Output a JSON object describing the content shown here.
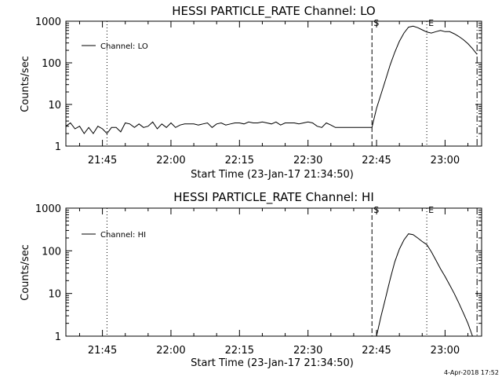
{
  "timestamp": "4-Apr-2018 17:52",
  "chart_data": [
    {
      "type": "line",
      "title": "HESSI PARTICLE_RATE Channel: LO",
      "xlabel": "Start Time (23-Jan-17 21:34:50)",
      "ylabel": "Counts/sec",
      "yscale": "log",
      "ylim": [
        1,
        1000
      ],
      "xlim": [
        "21:37",
        "23:08"
      ],
      "x_ticks": [
        "21:45",
        "22:00",
        "22:15",
        "22:30",
        "22:45",
        "23:00"
      ],
      "y_ticks": [
        "1",
        "10",
        "100",
        "1000"
      ],
      "grid": false,
      "legend": {
        "position": "top-left",
        "entries": [
          "Channel: LO"
        ]
      },
      "markers": [
        {
          "time": "21:46",
          "style": "dotted",
          "label": ""
        },
        {
          "time": "22:44",
          "style": "dashed",
          "label": "S"
        },
        {
          "time": "22:56",
          "style": "dotted",
          "label": "E"
        },
        {
          "time": "23:07",
          "style": "dash-dot",
          "label": ""
        }
      ],
      "series": [
        {
          "name": "Channel: LO",
          "x": [
            "21:37",
            "21:38",
            "21:39",
            "21:40",
            "21:41",
            "21:42",
            "21:43",
            "21:44",
            "21:45",
            "21:46",
            "21:47",
            "21:48",
            "21:49",
            "21:50",
            "21:51",
            "21:52",
            "21:53",
            "21:54",
            "21:55",
            "21:56",
            "21:57",
            "21:58",
            "21:59",
            "22:00",
            "22:01",
            "22:02",
            "22:03",
            "22:04",
            "22:05",
            "22:06",
            "22:07",
            "22:08",
            "22:09",
            "22:10",
            "22:11",
            "22:12",
            "22:13",
            "22:14",
            "22:15",
            "22:16",
            "22:17",
            "22:18",
            "22:19",
            "22:20",
            "22:21",
            "22:22",
            "22:23",
            "22:24",
            "22:25",
            "22:26",
            "22:27",
            "22:28",
            "22:29",
            "22:30",
            "22:31",
            "22:32",
            "22:33",
            "22:34",
            "22:35",
            "22:36",
            "22:37",
            "22:38",
            "22:39",
            "22:40",
            "22:41",
            "22:42",
            "22:43",
            "22:44",
            "22:45",
            "22:46",
            "22:47",
            "22:48",
            "22:49",
            "22:50",
            "22:51",
            "22:52",
            "22:53",
            "22:54",
            "22:55",
            "22:56",
            "22:57",
            "22:58",
            "22:59",
            "23:00",
            "23:01",
            "23:02",
            "23:03",
            "23:04",
            "23:05",
            "23:06",
            "23:07"
          ],
          "values": [
            3,
            3.6,
            2.6,
            3,
            2,
            2.8,
            2,
            3,
            2.6,
            2,
            2.8,
            2.8,
            2.2,
            3.6,
            3.4,
            2.8,
            3.4,
            2.8,
            3,
            3.8,
            2.6,
            3.4,
            2.8,
            3.6,
            2.8,
            3.2,
            3.4,
            3.4,
            3.4,
            3.2,
            3.4,
            3.6,
            2.8,
            3.4,
            3.6,
            3.2,
            3.4,
            3.6,
            3.6,
            3.4,
            3.8,
            3.6,
            3.6,
            3.8,
            3.6,
            3.4,
            3.8,
            3.2,
            3.6,
            3.6,
            3.6,
            3.4,
            3.6,
            3.8,
            3.6,
            3,
            2.8,
            3.6,
            3.2,
            2.8,
            2.8,
            2.8,
            2.8,
            2.8,
            2.8,
            2.8,
            2.8,
            2.8,
            8,
            18,
            40,
            90,
            180,
            330,
            520,
            720,
            760,
            700,
            620,
            550,
            520,
            560,
            600,
            560,
            560,
            500,
            430,
            360,
            290,
            220,
            160
          ]
        }
      ]
    },
    {
      "type": "line",
      "title": "HESSI PARTICLE_RATE Channel: HI",
      "xlabel": "Start Time (23-Jan-17 21:34:50)",
      "ylabel": "Counts/sec",
      "yscale": "log",
      "ylim": [
        1,
        1000
      ],
      "xlim": [
        "21:37",
        "23:08"
      ],
      "x_ticks": [
        "21:45",
        "22:00",
        "22:15",
        "22:30",
        "22:45",
        "23:00"
      ],
      "y_ticks": [
        "1",
        "10",
        "100",
        "1000"
      ],
      "grid": false,
      "legend": {
        "position": "top-left",
        "entries": [
          "Channel: HI"
        ]
      },
      "markers": [
        {
          "time": "21:46",
          "style": "dotted",
          "label": ""
        },
        {
          "time": "22:44",
          "style": "dashed",
          "label": "S"
        },
        {
          "time": "22:56",
          "style": "dotted",
          "label": "E"
        },
        {
          "time": "23:07",
          "style": "dash-dot",
          "label": ""
        }
      ],
      "series": [
        {
          "name": "Channel: HI",
          "x": [
            "22:45",
            "22:46",
            "22:47",
            "22:48",
            "22:49",
            "22:50",
            "22:51",
            "22:52",
            "22:53",
            "22:54",
            "22:55",
            "22:56",
            "22:57",
            "22:58",
            "22:59",
            "23:00",
            "23:01",
            "23:02",
            "23:03",
            "23:04",
            "23:05",
            "23:06"
          ],
          "values": [
            1,
            3,
            8,
            22,
            55,
            110,
            180,
            250,
            240,
            200,
            165,
            140,
            95,
            60,
            38,
            25,
            16,
            10,
            6,
            3.5,
            2,
            1
          ]
        }
      ]
    }
  ]
}
